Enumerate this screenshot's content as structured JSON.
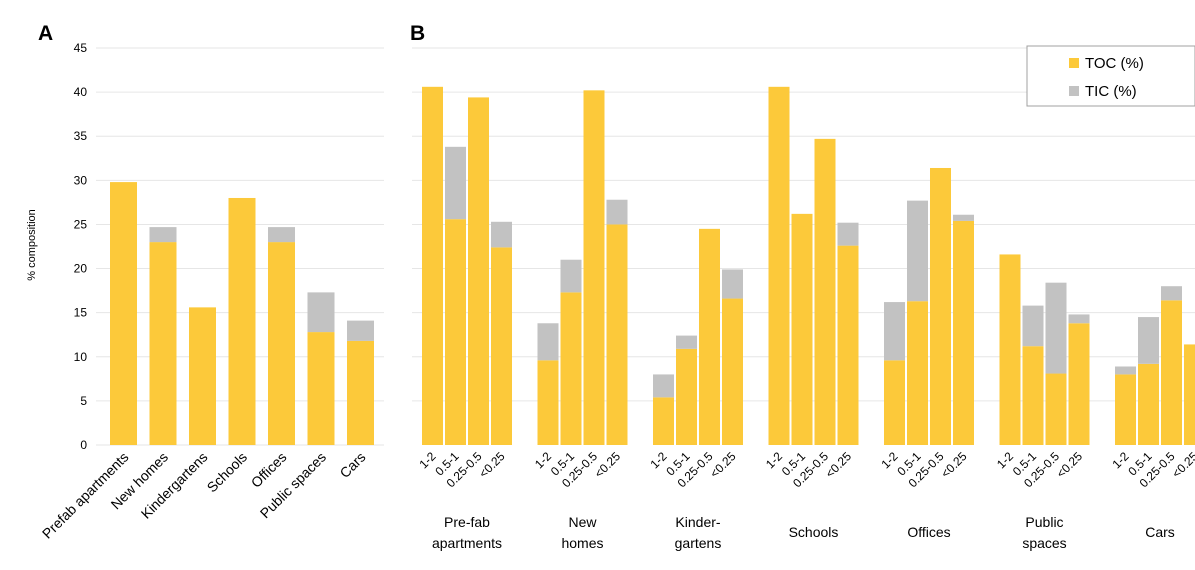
{
  "colors": {
    "toc": "#fcc93a",
    "tic": "#c2c2c2",
    "grid": "#e6e6e6"
  },
  "chart_data": [
    {
      "type": "bar",
      "stacked": true,
      "panel_label": "A",
      "ylabel": "% composition",
      "ylim": [
        0,
        45
      ],
      "yticks": [
        0,
        5,
        10,
        15,
        20,
        25,
        30,
        35,
        40,
        45
      ],
      "grid": true,
      "categories": [
        "Prefab apartments",
        "New homes",
        "Kindergartens",
        "Schools",
        "Offices",
        "Public spaces",
        "Cars"
      ],
      "series": [
        {
          "name": "TOC (%)",
          "values": [
            29.8,
            23.0,
            15.6,
            28.0,
            23.0,
            12.8,
            11.8
          ]
        },
        {
          "name": "TIC (%)",
          "values": [
            0.0,
            1.7,
            0.0,
            0.0,
            1.7,
            4.5,
            2.3
          ]
        }
      ]
    },
    {
      "type": "bar",
      "stacked": true,
      "panel_label": "B",
      "ylim": [
        0,
        45
      ],
      "grid": true,
      "legend": {
        "position": "top-right",
        "entries": [
          "TOC (%)",
          "TIC (%)"
        ]
      },
      "size_fractions": [
        "1-2",
        "0.5-1",
        "0.25-0.5",
        "<0.25"
      ],
      "groups": [
        {
          "label_lines": [
            "Pre-fab",
            "apartments"
          ],
          "toc": [
            40.6,
            25.6,
            39.4,
            22.4
          ],
          "tic": [
            0.0,
            8.2,
            0.0,
            2.9
          ]
        },
        {
          "label_lines": [
            "New",
            "homes"
          ],
          "toc": [
            9.6,
            17.3,
            40.2,
            25.0
          ],
          "tic": [
            4.2,
            3.7,
            0.0,
            2.8
          ]
        },
        {
          "label_lines": [
            "Kinder-",
            "gartens"
          ],
          "toc": [
            5.4,
            10.9,
            24.5,
            16.6
          ],
          "tic": [
            2.6,
            1.5,
            0.0,
            3.3
          ]
        },
        {
          "label_lines": [
            "Schools"
          ],
          "toc": [
            40.6,
            26.2,
            34.7,
            22.6
          ],
          "tic": [
            0.0,
            0.0,
            0.0,
            2.6
          ]
        },
        {
          "label_lines": [
            "Offices"
          ],
          "toc": [
            9.6,
            16.3,
            31.4,
            25.4
          ],
          "tic": [
            6.6,
            11.4,
            0.0,
            0.7
          ]
        },
        {
          "label_lines": [
            "Public",
            "spaces"
          ],
          "toc": [
            21.6,
            11.2,
            8.1,
            13.8
          ],
          "tic": [
            0.0,
            4.6,
            10.3,
            1.0
          ]
        },
        {
          "label_lines": [
            "Cars"
          ],
          "toc": [
            8.0,
            9.2,
            16.4,
            11.4
          ],
          "tic": [
            0.9,
            5.3,
            1.6,
            0.0
          ]
        }
      ]
    }
  ]
}
